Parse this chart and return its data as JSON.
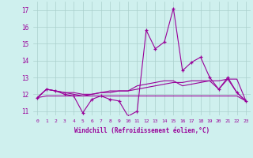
{
  "xlabel": "Windchill (Refroidissement éolien,°C)",
  "hours": [
    0,
    1,
    2,
    3,
    4,
    5,
    6,
    7,
    8,
    9,
    10,
    11,
    12,
    13,
    14,
    15,
    16,
    17,
    18,
    19,
    20,
    21,
    22,
    23
  ],
  "windchill": [
    11.8,
    12.3,
    12.2,
    12.0,
    11.9,
    10.9,
    11.7,
    11.9,
    11.7,
    11.6,
    10.7,
    11.0,
    15.8,
    14.7,
    15.1,
    17.1,
    13.4,
    13.9,
    14.2,
    13.0,
    12.3,
    13.0,
    12.1,
    11.6
  ],
  "line2": [
    11.8,
    12.3,
    12.2,
    12.1,
    12.1,
    12.0,
    12.0,
    12.1,
    12.2,
    12.2,
    12.2,
    12.3,
    12.4,
    12.5,
    12.6,
    12.7,
    12.7,
    12.8,
    12.8,
    12.8,
    12.8,
    12.9,
    12.9,
    11.6
  ],
  "line3": [
    11.8,
    11.9,
    11.9,
    11.9,
    11.9,
    11.9,
    11.9,
    11.9,
    11.9,
    11.9,
    11.9,
    11.9,
    11.9,
    11.9,
    11.9,
    11.9,
    11.9,
    11.9,
    11.9,
    11.9,
    11.9,
    11.9,
    11.9,
    11.6
  ],
  "line4": [
    11.8,
    12.3,
    12.2,
    12.1,
    12.0,
    11.9,
    12.0,
    12.1,
    12.1,
    12.2,
    12.2,
    12.5,
    12.6,
    12.7,
    12.8,
    12.8,
    12.5,
    12.6,
    12.7,
    12.8,
    12.3,
    12.9,
    12.1,
    11.6
  ],
  "ylim": [
    10.75,
    17.5
  ],
  "yticks": [
    11,
    12,
    13,
    14,
    15,
    16,
    17
  ],
  "line_color": "#990099",
  "bg_color": "#cff0ee",
  "grid_color": "#aacfcc",
  "tick_color": "#990099",
  "label_color": "#990099"
}
